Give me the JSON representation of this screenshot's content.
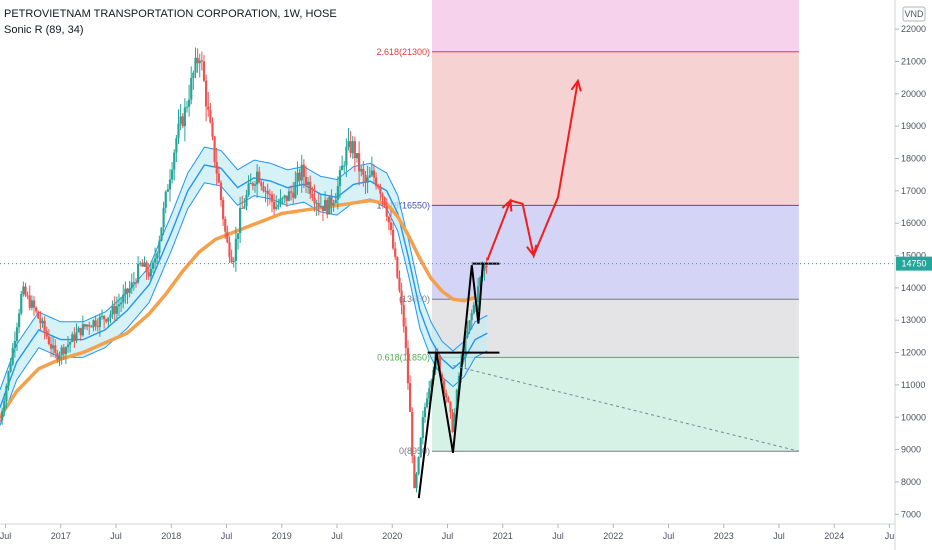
{
  "header": {
    "title": "PETROVIETNAM TRANSPORTATION CORPORATION, 1W, HOSE",
    "indicator": "Sonic R (89, 34)"
  },
  "chart_data": {
    "type": "line",
    "currency": "VND",
    "ylim": [
      6700,
      22900
    ],
    "y_ticks": [
      7000,
      8000,
      9000,
      10000,
      11000,
      12000,
      13000,
      14000,
      15000,
      16000,
      17000,
      18000,
      19000,
      20000,
      21000,
      22000
    ],
    "x_ticks": [
      "Jul",
      "2017",
      "Jul",
      "2018",
      "Jul",
      "2019",
      "Jul",
      "2020",
      "Jul",
      "2021",
      "Jul",
      "2022",
      "Jul",
      "2023",
      "Jul",
      "2024",
      "Ju"
    ],
    "x_tick_years": [
      2016.5,
      2017.0,
      2017.5,
      2018.0,
      2018.5,
      2019.0,
      2019.5,
      2020.0,
      2020.5,
      2021.0,
      2021.5,
      2022.0,
      2022.5,
      2023.0,
      2023.5,
      2024.0,
      2024.5
    ],
    "last_price": {
      "label": "14750",
      "value": 14750,
      "color": "#26a69a"
    },
    "fib_levels": [
      {
        "ratio": "0",
        "label": "0(8950)",
        "value": 8950,
        "color": "#787b86"
      },
      {
        "ratio": "0.618",
        "label": "0.618(11850)",
        "value": 11850,
        "color": "#4caf50"
      },
      {
        "ratio": "1",
        "label": "(13650)",
        "value": 13650,
        "color": "#787b86"
      },
      {
        "ratio": "1.618",
        "label": "1.618(16550)",
        "value": 16550,
        "color": "#3f51b5"
      },
      {
        "ratio": "2.618",
        "label": "2.618(21300)",
        "value": 21300,
        "color": "#e53935"
      }
    ],
    "fib_zones": [
      {
        "from": 8950,
        "to": 11850,
        "color": "#d6f2e6"
      },
      {
        "from": 11850,
        "to": 13650,
        "color": "#e4e4e6"
      },
      {
        "from": 13650,
        "to": 16550,
        "color": "#d3d4f6"
      },
      {
        "from": 16550,
        "to": 21300,
        "color": "#f6d2d2"
      },
      {
        "from": 21300,
        "to": 23000,
        "color": "#f6d2ec"
      }
    ],
    "fib_x_range": [
      2020.36,
      2023.68
    ],
    "candle_colors": {
      "up": "#26a69a",
      "down": "#ef5350"
    },
    "price_path": [
      [
        2016.45,
        9900
      ],
      [
        2016.55,
        11800
      ],
      [
        2016.65,
        13900
      ],
      [
        2016.75,
        13400
      ],
      [
        2016.85,
        12700
      ],
      [
        2016.95,
        11900
      ],
      [
        2017.05,
        12200
      ],
      [
        2017.15,
        12600
      ],
      [
        2017.25,
        12900
      ],
      [
        2017.35,
        13000
      ],
      [
        2017.45,
        13200
      ],
      [
        2017.55,
        13600
      ],
      [
        2017.65,
        14100
      ],
      [
        2017.72,
        14700
      ],
      [
        2017.82,
        14400
      ],
      [
        2017.9,
        15700
      ],
      [
        2017.97,
        17200
      ],
      [
        2018.05,
        18700
      ],
      [
        2018.12,
        19400
      ],
      [
        2018.2,
        20600
      ],
      [
        2018.26,
        21300
      ],
      [
        2018.32,
        19700
      ],
      [
        2018.38,
        18300
      ],
      [
        2018.44,
        17000
      ],
      [
        2018.5,
        15400
      ],
      [
        2018.56,
        14900
      ],
      [
        2018.62,
        16200
      ],
      [
        2018.7,
        17000
      ],
      [
        2018.78,
        17600
      ],
      [
        2018.86,
        17000
      ],
      [
        2018.94,
        16500
      ],
      [
        2019.02,
        16700
      ],
      [
        2019.1,
        17000
      ],
      [
        2019.18,
        17600
      ],
      [
        2019.26,
        17100
      ],
      [
        2019.34,
        16600
      ],
      [
        2019.42,
        16500
      ],
      [
        2019.5,
        17000
      ],
      [
        2019.58,
        18200
      ],
      [
        2019.64,
        18400
      ],
      [
        2019.7,
        17700
      ],
      [
        2019.76,
        17200
      ],
      [
        2019.82,
        17500
      ],
      [
        2019.88,
        17200
      ],
      [
        2019.94,
        16600
      ],
      [
        2020.0,
        15400
      ],
      [
        2020.06,
        14000
      ],
      [
        2020.11,
        12700
      ],
      [
        2020.16,
        10200
      ],
      [
        2020.2,
        7700
      ],
      [
        2020.24,
        8700
      ],
      [
        2020.28,
        10000
      ],
      [
        2020.32,
        10800
      ],
      [
        2020.36,
        11400
      ],
      [
        2020.4,
        12000
      ],
      [
        2020.44,
        11300
      ],
      [
        2020.5,
        10500
      ],
      [
        2020.55,
        9600
      ],
      [
        2020.6,
        11200
      ],
      [
        2020.66,
        12300
      ],
      [
        2020.72,
        13200
      ],
      [
        2020.78,
        14000
      ],
      [
        2020.82,
        14600
      ],
      [
        2020.86,
        14750
      ]
    ],
    "sonic_fast_band": {
      "mid": [
        [
          2016.45,
          10300
        ],
        [
          2016.6,
          11700
        ],
        [
          2016.8,
          12700
        ],
        [
          2017.0,
          12400
        ],
        [
          2017.2,
          12400
        ],
        [
          2017.4,
          12700
        ],
        [
          2017.6,
          13300
        ],
        [
          2017.8,
          14100
        ],
        [
          2018.0,
          15700
        ],
        [
          2018.15,
          17000
        ],
        [
          2018.3,
          17800
        ],
        [
          2018.45,
          17700
        ],
        [
          2018.6,
          17100
        ],
        [
          2018.75,
          17400
        ],
        [
          2018.9,
          17300
        ],
        [
          2019.05,
          17100
        ],
        [
          2019.2,
          17200
        ],
        [
          2019.35,
          16900
        ],
        [
          2019.5,
          16800
        ],
        [
          2019.65,
          17200
        ],
        [
          2019.8,
          17300
        ],
        [
          2019.95,
          17000
        ],
        [
          2020.05,
          16300
        ],
        [
          2020.15,
          14900
        ],
        [
          2020.25,
          13300
        ],
        [
          2020.35,
          12400
        ],
        [
          2020.45,
          11800
        ],
        [
          2020.55,
          11500
        ],
        [
          2020.65,
          11800
        ],
        [
          2020.75,
          12400
        ],
        [
          2020.86,
          12600
        ]
      ],
      "offset": 550,
      "color": "#2196f3",
      "fill": "#c6ecf2"
    },
    "sonic_slow_line": {
      "points": [
        [
          2016.45,
          10000
        ],
        [
          2016.6,
          10800
        ],
        [
          2016.8,
          11500
        ],
        [
          2017.0,
          11800
        ],
        [
          2017.2,
          12000
        ],
        [
          2017.4,
          12300
        ],
        [
          2017.6,
          12600
        ],
        [
          2017.8,
          13200
        ],
        [
          2017.95,
          13800
        ],
        [
          2018.1,
          14500
        ],
        [
          2018.25,
          15100
        ],
        [
          2018.4,
          15500
        ],
        [
          2018.55,
          15700
        ],
        [
          2018.7,
          15900
        ],
        [
          2018.85,
          16100
        ],
        [
          2019.0,
          16300
        ],
        [
          2019.2,
          16400
        ],
        [
          2019.4,
          16500
        ],
        [
          2019.6,
          16600
        ],
        [
          2019.8,
          16700
        ],
        [
          2019.95,
          16600
        ],
        [
          2020.05,
          16200
        ],
        [
          2020.15,
          15600
        ],
        [
          2020.25,
          14900
        ],
        [
          2020.35,
          14300
        ],
        [
          2020.45,
          13900
        ],
        [
          2020.55,
          13650
        ],
        [
          2020.65,
          13600
        ],
        [
          2020.75,
          13700
        ]
      ],
      "color": "#f5a04b"
    },
    "pattern_black": [
      [
        2020.24,
        7500
      ],
      [
        2020.4,
        12000
      ],
      [
        2020.55,
        8900
      ],
      [
        2020.72,
        14700
      ],
      [
        2020.78,
        12900
      ],
      [
        2020.82,
        14750
      ]
    ],
    "pattern_hlines": [
      {
        "y": 12000,
        "x0": 2020.32,
        "x1": 2020.97
      },
      {
        "y": 14750,
        "x0": 2020.72,
        "x1": 2020.97
      }
    ],
    "projection_red": [
      [
        2020.86,
        14850
      ],
      [
        2021.07,
        16700
      ],
      [
        2021.18,
        16600
      ],
      [
        2021.28,
        15000
      ],
      [
        2021.5,
        16800
      ],
      [
        2021.68,
        20400
      ]
    ],
    "trend_dashed": [
      [
        2020.55,
        11600
      ],
      [
        2023.68,
        8950
      ]
    ]
  }
}
